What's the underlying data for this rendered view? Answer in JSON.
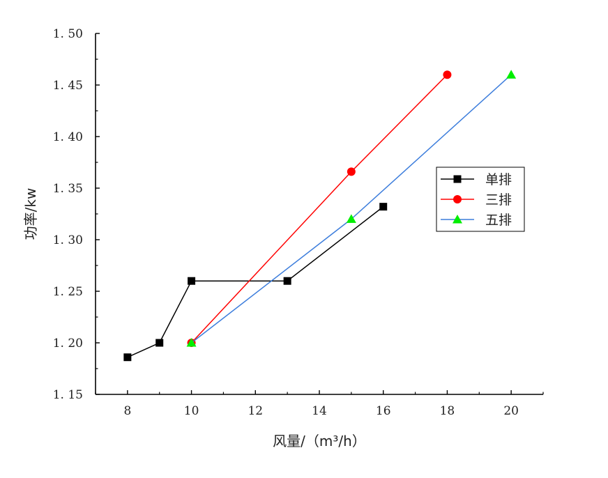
{
  "chart_data": {
    "type": "line",
    "title": "",
    "xlabel": "风量/（m³/h）",
    "ylabel": "功率/kw",
    "xlim": [
      7,
      21
    ],
    "ylim": [
      1.15,
      1.5
    ],
    "xticks": [
      8,
      10,
      12,
      14,
      16,
      18,
      20
    ],
    "yticks": [
      1.15,
      1.2,
      1.25,
      1.3,
      1.35,
      1.4,
      1.45,
      1.5
    ],
    "ytick_labels": [
      "1. 15",
      "1. 20",
      "1. 25",
      "1. 30",
      "1. 35",
      "1. 40",
      "1. 45",
      "1. 50"
    ],
    "grid": false,
    "legend_position": "right",
    "series": [
      {
        "name": "单排",
        "color": "#000000",
        "marker": "square",
        "points": [
          [
            8,
            1.186
          ],
          [
            9,
            1.2
          ],
          [
            10,
            1.26
          ],
          [
            13,
            1.26
          ],
          [
            16,
            1.332
          ]
        ]
      },
      {
        "name": "三排",
        "color": "#ff0000",
        "marker": "circle",
        "points": [
          [
            10,
            1.2
          ],
          [
            15,
            1.366
          ],
          [
            18,
            1.46
          ]
        ]
      },
      {
        "name": "五排",
        "color": "#3c7ddc",
        "marker_color": "#00ee00",
        "marker": "triangle",
        "points": [
          [
            10,
            1.2
          ],
          [
            15,
            1.32
          ],
          [
            20,
            1.46
          ]
        ]
      }
    ]
  }
}
